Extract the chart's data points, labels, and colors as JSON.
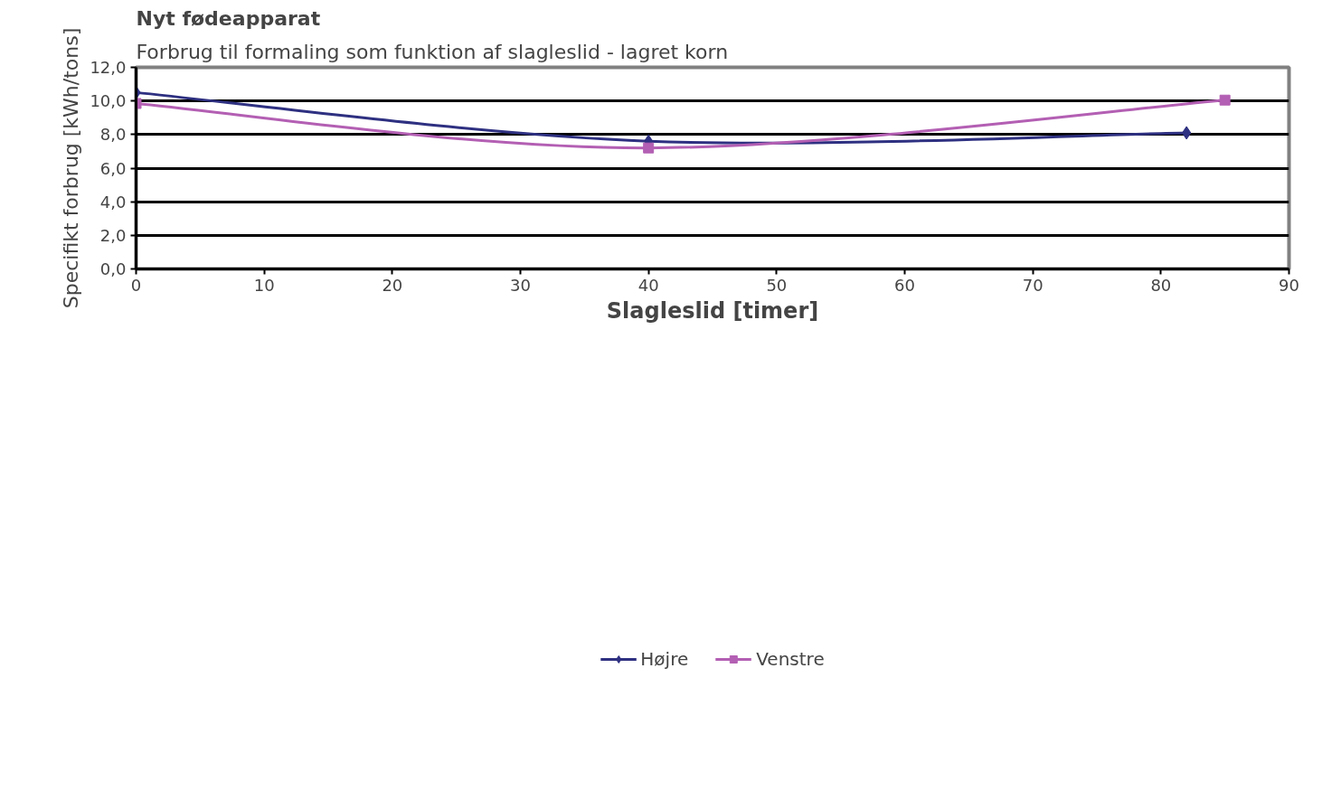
{
  "chart_data": {
    "type": "line",
    "title": "Nyt fødeapparat",
    "subtitle": "Forbrug til formaling som funktion af slagleslid - lagret korn",
    "xlabel": "Slagleslid [timer]",
    "ylabel": "Specifikt forbrug [kWh/tons]",
    "series": [
      {
        "name": "Højre",
        "color": "#2e3081",
        "marker": "diamond",
        "x": [
          0,
          40,
          82
        ],
        "values": [
          10.5,
          7.6,
          8.1
        ]
      },
      {
        "name": "Venstre",
        "color": "#b35fb3",
        "marker": "square",
        "x": [
          0,
          40,
          85
        ],
        "values": [
          9.85,
          7.2,
          10.05
        ]
      }
    ],
    "xlim": [
      0,
      90
    ],
    "xticks": [
      0,
      10,
      20,
      30,
      40,
      50,
      60,
      70,
      80,
      90
    ],
    "ylim": [
      0,
      12
    ],
    "yticks": [
      {
        "value": 0,
        "label": "0,0"
      },
      {
        "value": 2,
        "label": "2,0"
      },
      {
        "value": 4,
        "label": "4,0"
      },
      {
        "value": 6,
        "label": "6,0"
      },
      {
        "value": 8,
        "label": "8,0"
      },
      {
        "value": 10,
        "label": "10,0"
      },
      {
        "value": 12,
        "label": "12,0"
      }
    ],
    "grid": "y",
    "legend": "bottom",
    "line_style": "solid"
  }
}
